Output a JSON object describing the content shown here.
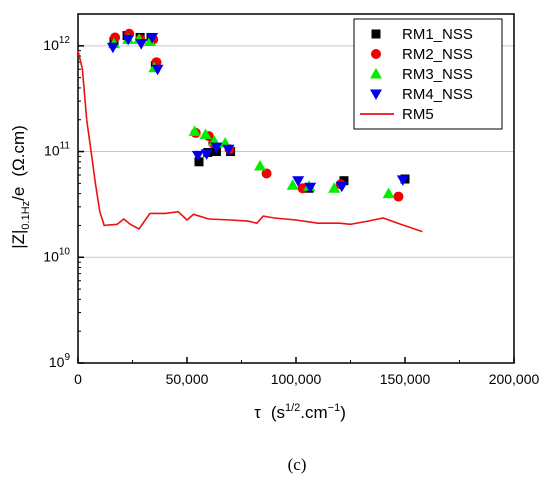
{
  "chart_data": {
    "type": "scatter",
    "caption": "(c)",
    "xlabel": {
      "main": "τ",
      "unit": "(s",
      "sup": "1/2",
      "unit_rest": ".cm",
      "sup2": "−1",
      "close": ")"
    },
    "ylabel": {
      "main": "|Z|",
      "sub": "0.1Hz",
      "after": "/e",
      "unit": "(Ω.cm)"
    },
    "xlim": [
      0,
      200000
    ],
    "ylim": [
      1000000000,
      2000000000000
    ],
    "yscale": "log",
    "x_ticks": [
      {
        "value": 0,
        "label": "0"
      },
      {
        "value": 50000,
        "label": "50,000"
      },
      {
        "value": 100000,
        "label": "100,000"
      },
      {
        "value": 150000,
        "label": "150,000"
      },
      {
        "value": 200000,
        "label": "200,000"
      }
    ],
    "y_ticks": [
      {
        "value": 1000000000,
        "base": "10",
        "exp": "9"
      },
      {
        "value": 10000000000,
        "base": "10",
        "exp": "10"
      },
      {
        "value": 100000000000,
        "base": "10",
        "exp": "11"
      },
      {
        "value": 1000000000000,
        "base": "10",
        "exp": "12"
      }
    ],
    "grid": "horizontal",
    "legend_position": "top-right",
    "series": [
      {
        "name": "RM1_NSS",
        "marker": "square",
        "color": "#000000",
        "points": [
          [
            16500,
            1100000000000
          ],
          [
            22500,
            1250000000000
          ],
          [
            28500,
            1200000000000
          ],
          [
            33500,
            1200000000000
          ],
          [
            35500,
            650000000000
          ],
          [
            55500,
            80000000000
          ],
          [
            59500,
            98000000000
          ],
          [
            63500,
            100000000000
          ],
          [
            70000,
            100000000000
          ],
          [
            106000,
            45000000000
          ],
          [
            122000,
            53000000000
          ],
          [
            150000,
            55000000000
          ]
        ]
      },
      {
        "name": "RM2_NSS",
        "marker": "circle",
        "color": "#ee0000",
        "points": [
          [
            17000,
            1200000000000
          ],
          [
            23500,
            1300000000000
          ],
          [
            28500,
            1150000000000
          ],
          [
            34500,
            1150000000000
          ],
          [
            36000,
            700000000000
          ],
          [
            54000,
            150000000000
          ],
          [
            60000,
            140000000000
          ],
          [
            62000,
            120000000000
          ],
          [
            69500,
            105000000000
          ],
          [
            86500,
            62000000000
          ],
          [
            103000,
            45000000000
          ],
          [
            120500,
            49000000000
          ],
          [
            147000,
            37500000000
          ]
        ]
      },
      {
        "name": "RM3_NSS",
        "marker": "triangle-up",
        "color": "#00ee00",
        "points": [
          [
            16500,
            1050000000000
          ],
          [
            23000,
            1150000000000
          ],
          [
            28000,
            1150000000000
          ],
          [
            33000,
            1100000000000
          ],
          [
            35000,
            620000000000
          ],
          [
            53500,
            155000000000
          ],
          [
            58500,
            145000000000
          ],
          [
            62500,
            125000000000
          ],
          [
            67500,
            120000000000
          ],
          [
            83500,
            73000000000
          ],
          [
            98500,
            48000000000
          ],
          [
            106000,
            47000000000
          ],
          [
            117500,
            45000000000
          ],
          [
            142500,
            40000000000
          ]
        ]
      },
      {
        "name": "RM4_NSS",
        "marker": "triangle-down",
        "color": "#0000ee",
        "points": [
          [
            16000,
            970000000000
          ],
          [
            23000,
            1150000000000
          ],
          [
            29000,
            1050000000000
          ],
          [
            34000,
            1200000000000
          ],
          [
            36500,
            600000000000
          ],
          [
            55000,
            92000000000
          ],
          [
            59000,
            95000000000
          ],
          [
            63500,
            110000000000
          ],
          [
            69000,
            105000000000
          ],
          [
            101000,
            53000000000
          ],
          [
            106500,
            46000000000
          ],
          [
            121000,
            47000000000
          ],
          [
            149000,
            54000000000
          ]
        ]
      },
      {
        "name": "RM5",
        "marker": "line",
        "color": "#ee1111",
        "points": [
          [
            0,
            900000000000
          ],
          [
            2000,
            600000000000
          ],
          [
            4000,
            200000000000
          ],
          [
            6000,
            100000000000
          ],
          [
            8000,
            50000000000
          ],
          [
            10000,
            27000000000
          ],
          [
            12000,
            20000000000
          ],
          [
            18000,
            20500000000
          ],
          [
            21000,
            23000000000
          ],
          [
            24000,
            20500000000
          ],
          [
            28000,
            18500000000
          ],
          [
            33000,
            26000000000
          ],
          [
            40000,
            26000000000
          ],
          [
            46000,
            27000000000
          ],
          [
            50000,
            22500000000
          ],
          [
            53000,
            25500000000
          ],
          [
            60000,
            23000000000
          ],
          [
            70000,
            22500000000
          ],
          [
            78000,
            22000000000
          ],
          [
            82000,
            21000000000
          ],
          [
            85000,
            24500000000
          ],
          [
            90000,
            23500000000
          ],
          [
            100000,
            22500000000
          ],
          [
            110000,
            21000000000
          ],
          [
            120000,
            21000000000
          ],
          [
            125000,
            20500000000
          ],
          [
            133000,
            22000000000
          ],
          [
            140000,
            23500000000
          ],
          [
            148000,
            20500000000
          ],
          [
            158000,
            17500000000
          ]
        ]
      }
    ]
  }
}
